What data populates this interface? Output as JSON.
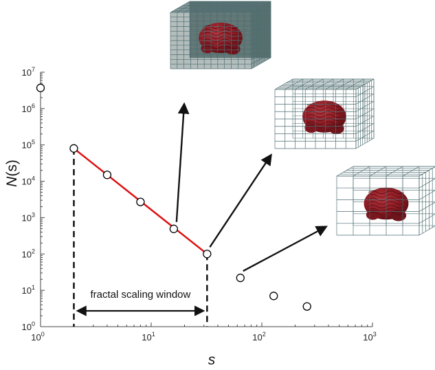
{
  "chart_data": {
    "type": "scatter",
    "xlabel_var": "s",
    "ylabel_var": "N",
    "ylabel_arg": "(s)",
    "xscale": "log",
    "yscale": "log",
    "xlim": [
      1,
      1000
    ],
    "ylim": [
      1,
      10000000
    ],
    "x_ticks": [
      {
        "base": "10",
        "exp": "0",
        "value": 1
      },
      {
        "base": "10",
        "exp": "1",
        "value": 10
      },
      {
        "base": "10",
        "exp": "2",
        "value": 100
      },
      {
        "base": "10",
        "exp": "3",
        "value": 1000
      }
    ],
    "y_ticks": [
      {
        "base": "10",
        "exp": "0",
        "value": 1
      },
      {
        "base": "10",
        "exp": "1",
        "value": 10
      },
      {
        "base": "10",
        "exp": "2",
        "value": 100
      },
      {
        "base": "10",
        "exp": "3",
        "value": 1000
      },
      {
        "base": "10",
        "exp": "4",
        "value": 10000
      },
      {
        "base": "10",
        "exp": "5",
        "value": 100000
      },
      {
        "base": "10",
        "exp": "6",
        "value": 1000000
      },
      {
        "base": "10",
        "exp": "7",
        "value": 10000000
      }
    ],
    "series": [
      {
        "x": [
          1,
          2,
          4,
          8,
          16,
          32,
          64,
          128,
          256
        ],
        "y": [
          3700000,
          80000,
          15000,
          2700,
          490,
          100,
          22,
          7,
          3.6
        ]
      }
    ],
    "fit_line": {
      "x": [
        2,
        32
      ],
      "y": [
        80000,
        100
      ],
      "color": "#dd1111"
    },
    "scaling_window": {
      "x_start": 2,
      "x_end": 32,
      "label": "fractal scaling window"
    },
    "grid": false,
    "colors": {
      "marker": "#000000",
      "fit": "#dd1111",
      "brain": "#8b1a22",
      "grid_cube": "#4f6e72"
    },
    "insets": [
      {
        "icon": "brain-in-fine-grid-cube-icon",
        "grid_divisions": 12,
        "arrow_from_x": 16,
        "arrow_from_y": 490
      },
      {
        "icon": "brain-in-medium-grid-cube-icon",
        "grid_divisions": 8,
        "arrow_from_x": 32,
        "arrow_from_y": 100
      },
      {
        "icon": "brain-in-coarse-grid-cube-icon",
        "grid_divisions": 5,
        "arrow_from_x": 64,
        "arrow_from_y": 22
      }
    ]
  }
}
